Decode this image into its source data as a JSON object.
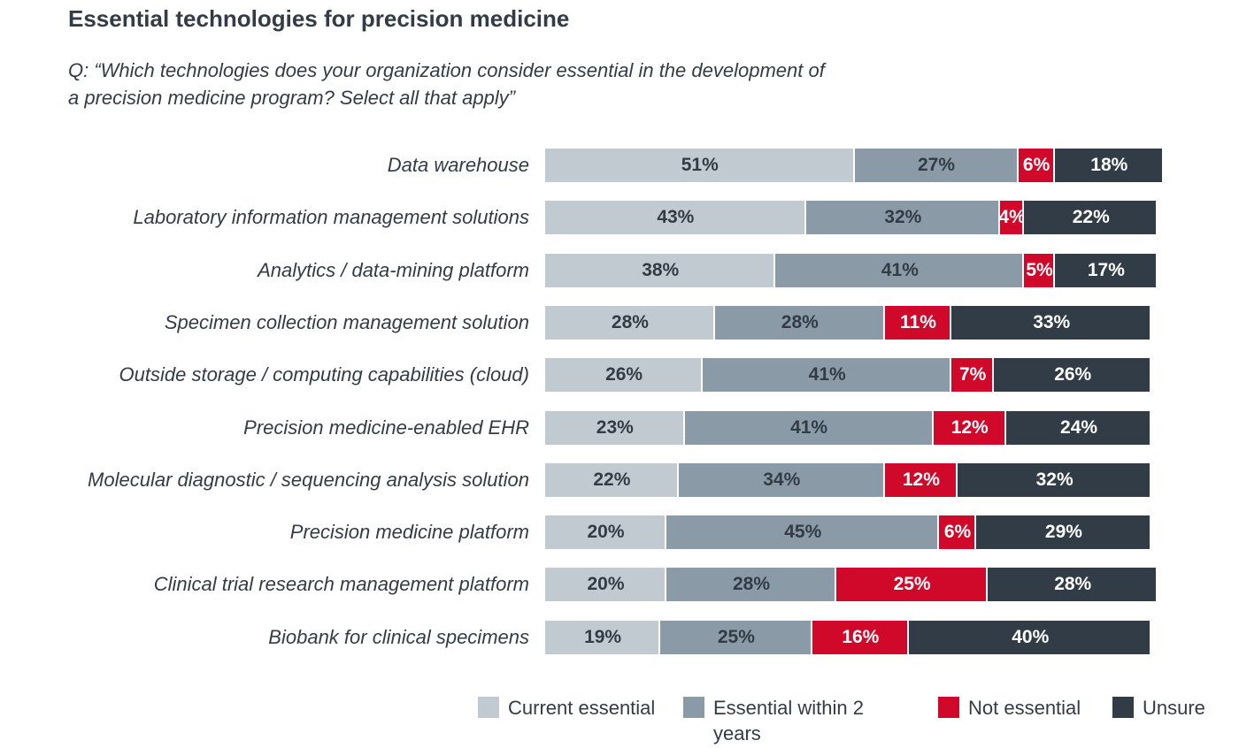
{
  "chart_data": {
    "type": "stacked-bar-100",
    "title": "Essential technologies for precision medicine",
    "subtitle": "Q: “Which technologies does your organization consider essential in the development of a precision medicine program? Select all that apply”",
    "categories": [
      "Data warehouse",
      "Laboratory information management solutions",
      "Analytics / data-mining platform",
      "Specimen collection management solution",
      "Outside storage / computing capabilities (cloud)",
      "Precision medicine-enabled EHR",
      "Molecular diagnostic / sequencing analysis solution",
      "Precision medicine platform",
      "Clinical trial research management platform",
      "Biobank for clinical specimens"
    ],
    "series": [
      {
        "name": "Current essential",
        "color": "#c1cad1",
        "label_color": "#333c46",
        "values": [
          51,
          43,
          38,
          28,
          26,
          23,
          22,
          20,
          20,
          19
        ],
        "value_labels": [
          "51%",
          "43%",
          "38%",
          "28%",
          "26%",
          "23%",
          "22%",
          "20%",
          "20%",
          "19%"
        ]
      },
      {
        "name": "Essential within 2 years",
        "color": "#8a9ba7",
        "label_color": "#333c46",
        "values": [
          27,
          32,
          41,
          28,
          41,
          41,
          34,
          45,
          28,
          25
        ],
        "value_labels": [
          "27%",
          "32%",
          "41%",
          "28%",
          "41%",
          "41%",
          "34%",
          "45%",
          "28%",
          "25%"
        ]
      },
      {
        "name": "Not essential",
        "color": "#d0092b",
        "label_color": "#ffffff",
        "values": [
          6,
          4,
          5,
          11,
          7,
          12,
          12,
          6,
          25,
          16
        ],
        "value_labels": [
          "6%",
          "4%",
          "5%",
          "11%",
          "7%",
          "12%",
          "12%",
          "6%",
          "25%",
          "16%"
        ]
      },
      {
        "name": "Unsure",
        "color": "#323c46",
        "label_color": "#ffffff",
        "values": [
          18,
          22,
          17,
          33,
          26,
          24,
          32,
          29,
          28,
          40
        ],
        "value_labels": [
          "18%",
          "22%",
          "17%",
          "33%",
          "26%",
          "24%",
          "32%",
          "29%",
          "28%",
          "40%"
        ]
      }
    ]
  }
}
